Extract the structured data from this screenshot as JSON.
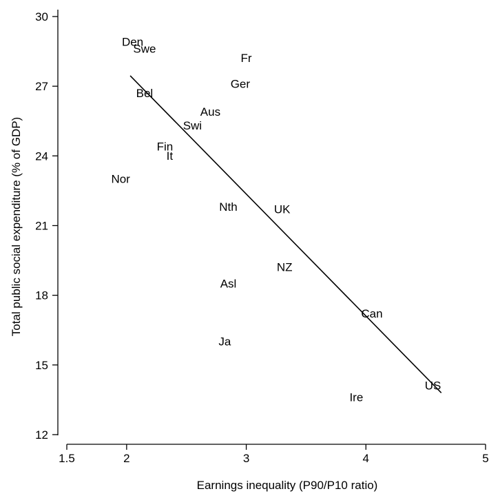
{
  "chart_data": {
    "type": "scatter",
    "xlabel": "Earnings inequality (P90/P10 ratio)",
    "ylabel": "Total public social expenditure (% of GDP)",
    "xlim": [
      1.5,
      5
    ],
    "ylim": [
      12,
      30
    ],
    "x_ticks": [
      1.5,
      2,
      3,
      4,
      5
    ],
    "x_tick_labels": [
      "1.5",
      "2",
      "3",
      "4",
      "5"
    ],
    "y_ticks": [
      12,
      15,
      18,
      21,
      24,
      27,
      30
    ],
    "y_tick_labels": [
      "12",
      "15",
      "18",
      "21",
      "24",
      "27",
      "30"
    ],
    "grid": false,
    "legend": "none",
    "points": [
      {
        "label": "Den",
        "x": 2.05,
        "y": 28.9
      },
      {
        "label": "Swe",
        "x": 2.15,
        "y": 28.6
      },
      {
        "label": "Fr",
        "x": 3.0,
        "y": 28.2
      },
      {
        "label": "Ger",
        "x": 2.95,
        "y": 27.1
      },
      {
        "label": "Bel",
        "x": 2.15,
        "y": 26.7
      },
      {
        "label": "Aus",
        "x": 2.7,
        "y": 25.9
      },
      {
        "label": "Swi",
        "x": 2.55,
        "y": 25.3
      },
      {
        "label": "Fin",
        "x": 2.32,
        "y": 24.4
      },
      {
        "label": "It",
        "x": 2.36,
        "y": 24.0
      },
      {
        "label": "Nor",
        "x": 1.95,
        "y": 23.0
      },
      {
        "label": "Nth",
        "x": 2.85,
        "y": 21.8
      },
      {
        "label": "UK",
        "x": 3.3,
        "y": 21.7
      },
      {
        "label": "NZ",
        "x": 3.32,
        "y": 19.2
      },
      {
        "label": "Asl",
        "x": 2.85,
        "y": 18.5
      },
      {
        "label": "Can",
        "x": 4.05,
        "y": 17.2
      },
      {
        "label": "Ja",
        "x": 2.82,
        "y": 16.0
      },
      {
        "label": "US",
        "x": 4.56,
        "y": 14.1
      },
      {
        "label": "Ire",
        "x": 3.92,
        "y": 13.6
      }
    ],
    "fit_line": {
      "x": [
        2.03,
        4.63
      ],
      "y": [
        27.45,
        13.8
      ]
    }
  }
}
